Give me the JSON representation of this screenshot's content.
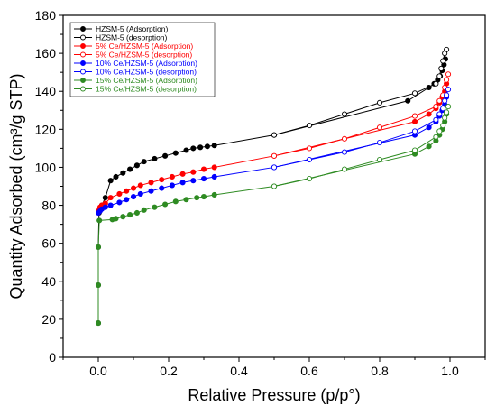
{
  "chart_data": {
    "type": "line",
    "title": "",
    "xlabel": "Relative Pressure (p/p°)",
    "ylabel": "Quantity Adsorbed (cm³/g STP)",
    "xlim": [
      -0.1,
      1.1
    ],
    "ylim": [
      0,
      180
    ],
    "xticks": [
      0.0,
      0.2,
      0.4,
      0.6,
      0.8,
      1.0
    ],
    "xtick_labels": [
      "0.0",
      "0.2",
      "0.4",
      "0.6",
      "0.8",
      "1.0"
    ],
    "yticks": [
      0,
      20,
      40,
      60,
      80,
      100,
      120,
      140,
      160,
      180
    ],
    "ytick_labels": [
      "0",
      "20",
      "40",
      "60",
      "80",
      "100",
      "120",
      "140",
      "160",
      "180"
    ],
    "grid": false,
    "legend_position": "top-left",
    "series": [
      {
        "name": "HZSM-5 (Adsorption)",
        "color": "#000000",
        "marker": "filled",
        "x": [
          0.0,
          0.0,
          0.0,
          0.002,
          0.005,
          0.01,
          0.02,
          0.035,
          0.05,
          0.07,
          0.09,
          0.11,
          0.13,
          0.16,
          0.19,
          0.22,
          0.25,
          0.27,
          0.29,
          0.31,
          0.33,
          0.5,
          0.88,
          0.94,
          0.955,
          0.965,
          0.972,
          0.978,
          0.983,
          0.987
        ],
        "y": [
          18,
          38,
          58,
          76,
          78,
          80,
          84,
          93,
          95,
          97,
          99,
          101,
          103,
          104.5,
          106,
          107.5,
          109,
          110,
          110.5,
          111,
          111.5,
          117,
          135,
          142,
          144,
          146,
          148,
          151,
          154,
          157
        ]
      },
      {
        "name": "HZSM-5 (desorption)",
        "color": "#000000",
        "marker": "open",
        "x": [
          0.99,
          0.985,
          0.98,
          0.975,
          0.97,
          0.96,
          0.9,
          0.8,
          0.7,
          0.6,
          0.5
        ],
        "y": [
          162,
          160,
          156,
          152,
          148,
          144,
          139,
          134,
          128,
          122,
          117
        ]
      },
      {
        "name": "5% Ce/HZSM-5 (Adsorption)",
        "color": "#ff0000",
        "marker": "filled",
        "x": [
          0.0,
          0.005,
          0.01,
          0.02,
          0.035,
          0.06,
          0.08,
          0.1,
          0.12,
          0.15,
          0.18,
          0.21,
          0.24,
          0.27,
          0.3,
          0.33,
          0.5,
          0.9,
          0.94,
          0.96,
          0.97,
          0.978,
          0.985,
          0.99
        ],
        "y": [
          77,
          79,
          80,
          81,
          84,
          86,
          87.5,
          89,
          90.5,
          92,
          93.5,
          95,
          96.5,
          97.5,
          99,
          100,
          106,
          124,
          128,
          131,
          134,
          137,
          140,
          144
        ]
      },
      {
        "name": "5% Ce/HZSM-5 (desorption)",
        "color": "#ff0000",
        "marker": "open",
        "x": [
          0.995,
          0.99,
          0.985,
          0.98,
          0.97,
          0.96,
          0.9,
          0.8,
          0.7,
          0.6,
          0.5
        ],
        "y": [
          149,
          146,
          142,
          138,
          135,
          132,
          127,
          121,
          115,
          110,
          106
        ]
      },
      {
        "name": "10% Ce/HZSM-5 (Adsorption)",
        "color": "#0000ff",
        "marker": "filled",
        "x": [
          0.0,
          0.005,
          0.01,
          0.02,
          0.035,
          0.06,
          0.08,
          0.1,
          0.12,
          0.15,
          0.18,
          0.21,
          0.24,
          0.27,
          0.3,
          0.33,
          0.5,
          0.9,
          0.94,
          0.96,
          0.97,
          0.978,
          0.985,
          0.99
        ],
        "y": [
          76,
          77,
          78,
          79,
          80,
          81.5,
          83,
          84.5,
          86,
          87.5,
          89,
          90.5,
          92,
          93,
          94,
          95,
          100,
          117,
          121,
          124,
          127,
          130,
          133,
          137
        ]
      },
      {
        "name": "10% Ce/HZSM-5 (desorption)",
        "color": "#0000ff",
        "marker": "open",
        "x": [
          0.995,
          0.99,
          0.985,
          0.98,
          0.97,
          0.96,
          0.9,
          0.8,
          0.7,
          0.6,
          0.5
        ],
        "y": [
          141,
          138,
          135,
          131,
          128,
          125,
          119,
          113,
          108,
          104,
          100
        ]
      },
      {
        "name": "15% Ce/HZSM-5 (Adsorption)",
        "color": "#2e8b22",
        "marker": "filled",
        "x": [
          0.0,
          0.0,
          0.0,
          0.003,
          0.04,
          0.05,
          0.07,
          0.09,
          0.11,
          0.13,
          0.16,
          0.19,
          0.22,
          0.25,
          0.28,
          0.3,
          0.33,
          0.5,
          0.9,
          0.94,
          0.96,
          0.97,
          0.978,
          0.985,
          0.99
        ],
        "y": [
          18,
          38,
          58,
          72,
          72.5,
          73,
          74,
          75,
          76,
          77.5,
          79,
          80.5,
          82,
          83,
          84,
          84.5,
          85.5,
          90,
          107,
          111,
          114,
          117,
          120,
          124,
          128
        ]
      },
      {
        "name": "15% Ce/HZSM-5 (desorption)",
        "color": "#2e8b22",
        "marker": "open",
        "x": [
          0.995,
          0.99,
          0.985,
          0.98,
          0.97,
          0.96,
          0.9,
          0.8,
          0.7,
          0.6,
          0.5
        ],
        "y": [
          132,
          129,
          126,
          122,
          119,
          116,
          109,
          104,
          99,
          94,
          90
        ]
      }
    ]
  }
}
